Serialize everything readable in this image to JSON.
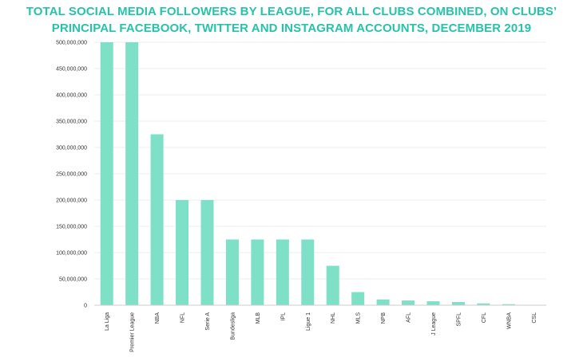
{
  "chart_data": {
    "type": "bar",
    "title_lines": [
      "TOTAL SOCIAL MEDIA FOLLOWERS BY LEAGUE, FOR ALL CLUBS COMBINED, ON CLUBS’",
      "PRINCIPAL FACEBOOK, TWITTER AND INSTAGRAM ACCOUNTS, DECEMBER 2019"
    ],
    "categories": [
      "La Liga",
      "Premier League",
      "NBA",
      "NFL",
      "Serie A",
      "Bundesliga",
      "MLB",
      "IPL",
      "Ligue 1",
      "NHL",
      "MLS",
      "NPB",
      "AFL",
      "J League",
      "SPFL",
      "CFL",
      "WNBA",
      "CSL"
    ],
    "values": [
      500000000,
      500000000,
      325000000,
      200000000,
      200000000,
      125000000,
      125000000,
      125000000,
      125000000,
      75000000,
      25000000,
      11000000,
      9000000,
      7500000,
      6000000,
      3500000,
      2000000,
      500000
    ],
    "yticks": [
      0,
      50000000,
      100000000,
      150000000,
      200000000,
      250000000,
      300000000,
      350000000,
      400000000,
      450000000,
      500000000
    ],
    "ytick_labels": [
      "0",
      "50,000,000",
      "100,000,000",
      "150,000,000",
      "200,000,000",
      "250,000,000",
      "300,000,000",
      "350,000,000",
      "400,000,000",
      "450,000,000",
      "500,000,000"
    ],
    "ylim": [
      0,
      500000000
    ],
    "xlabel": "",
    "ylabel": "",
    "bar_color": "#7ee0c7",
    "title_color": "#27c3a8",
    "grid_color": "#eeeeee"
  }
}
